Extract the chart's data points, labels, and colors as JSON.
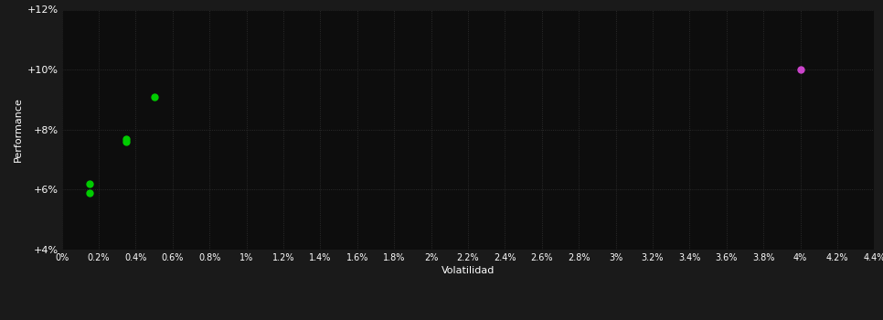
{
  "background_color": "#1a1a1a",
  "plot_bg_color": "#0d0d0d",
  "text_color": "#ffffff",
  "xlabel": "Volatilidad",
  "ylabel": "Performance",
  "xlim": [
    0.0,
    0.044
  ],
  "ylim": [
    0.04,
    0.12
  ],
  "ytick_values": [
    0.04,
    0.06,
    0.08,
    0.1,
    0.12
  ],
  "ytick_labels": [
    "+4%",
    "+6%",
    "+8%",
    "+10%",
    "+12%"
  ],
  "green_points": [
    [
      0.0015,
      0.062
    ],
    [
      0.0015,
      0.059
    ],
    [
      0.0035,
      0.077
    ],
    [
      0.0035,
      0.076
    ],
    [
      0.005,
      0.091
    ]
  ],
  "magenta_point": [
    0.04,
    0.1
  ],
  "green_color": "#00cc00",
  "magenta_color": "#cc44cc",
  "marker_size": 5,
  "grid_color": "#333333",
  "grid_linestyle": "dotted"
}
